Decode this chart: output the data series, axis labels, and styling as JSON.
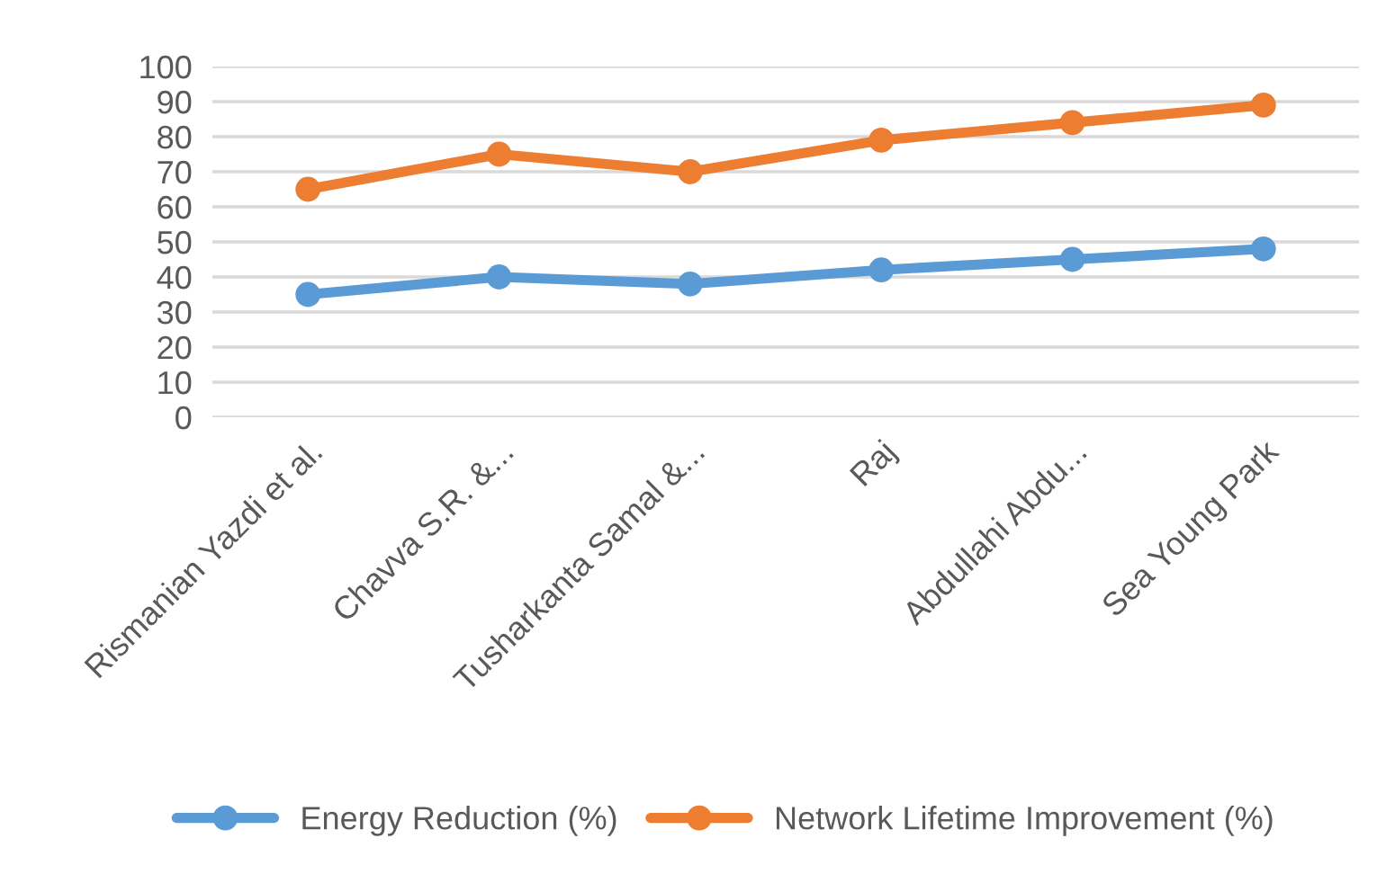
{
  "chart_data": {
    "type": "line",
    "categories": [
      "Rismanian Yazdi et al.",
      "Chavva S.R. &...",
      "Tusharkanta Samal &...",
      "Raj",
      "Abdullahi Abdu...",
      "Sea Young Park"
    ],
    "series": [
      {
        "name": "Energy Reduction (%)",
        "color": "#5b9bd5",
        "values": [
          35,
          40,
          38,
          42,
          45,
          48
        ]
      },
      {
        "name": "Network Lifetime Improvement (%)",
        "color": "#ed7d31",
        "values": [
          65,
          75,
          70,
          79,
          84,
          89
        ]
      }
    ],
    "ylim": [
      0,
      100
    ],
    "yticks": [
      0,
      10,
      20,
      30,
      40,
      50,
      60,
      70,
      80,
      90,
      100
    ],
    "grid": "y",
    "legend": "bottom",
    "marker": "circle",
    "line_style": "solid"
  }
}
